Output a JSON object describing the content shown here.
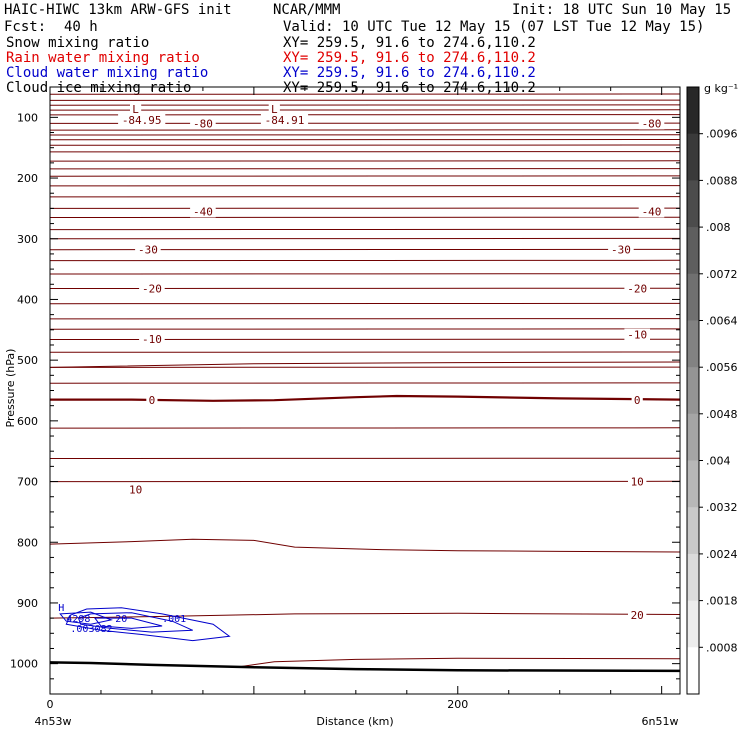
{
  "header": {
    "title_left": "HAIC-HIWC 13km ARW-GFS init",
    "title_mid": "NCAR/MMM",
    "init_time": "Init: 18 UTC Sun 10 May 15",
    "fcst_label": "Fcst:",
    "fcst_value": "40 h",
    "valid_time": "Valid: 10 UTC Tue 12 May 15 (07 LST Tue 12 May 15)"
  },
  "fields": [
    {
      "name": "Snow mixing ratio",
      "xy": "XY= 259.5, 91.6 to 274.6,110.2",
      "color": "#000000"
    },
    {
      "name": "Rain water mixing ratio",
      "xy": "XY= 259.5, 91.6 to 274.6,110.2",
      "color": "#e00000"
    },
    {
      "name": "Cloud water mixing ratio",
      "xy": "XY= 259.5, 91.6 to 274.6,110.2",
      "color": "#0000cc"
    },
    {
      "name": "Cloud ice mixing ratio",
      "xy": "XY= 259.5, 91.6 to 274.6,110.2",
      "color": "#000000"
    }
  ],
  "chart_data": {
    "type": "cross-section contour",
    "xlabel": "Distance (km)",
    "ylabel": "Pressure (hPa)",
    "x_ticks": [
      0,
      200
    ],
    "y_ticks": [
      100,
      200,
      300,
      400,
      500,
      600,
      700,
      800,
      900,
      1000
    ],
    "xlim": [
      0,
      309
    ],
    "ylim": [
      1050,
      50
    ],
    "left_location": "4n53w",
    "right_location": "6n51w",
    "colorbar": {
      "unit": "g kg⁻¹",
      "ticks": [
        ".0096",
        ".0088",
        ".008",
        ".0072",
        ".0064",
        ".0056",
        ".0048",
        ".004",
        ".0032",
        ".0024",
        ".0018",
        ".0008"
      ]
    },
    "temperature_contour_color": "#700000",
    "cloud_water_contour_color": "#0000cc",
    "temperature_labels": [
      {
        "text": "-84.95",
        "x": 45,
        "p": 104
      },
      {
        "text": "L",
        "x": 42,
        "p": 86
      },
      {
        "text": "-80",
        "x": 75,
        "p": 110
      },
      {
        "text": "-84.91",
        "x": 115,
        "p": 104
      },
      {
        "text": "L",
        "x": 110,
        "p": 86
      },
      {
        "text": "-80",
        "x": 295,
        "p": 110
      },
      {
        "text": "-40",
        "x": 75,
        "p": 255
      },
      {
        "text": "-40",
        "x": 295,
        "p": 255
      },
      {
        "text": "-30",
        "x": 48,
        "p": 318
      },
      {
        "text": "-30",
        "x": 280,
        "p": 318
      },
      {
        "text": "-20",
        "x": 50,
        "p": 382
      },
      {
        "text": "-20",
        "x": 288,
        "p": 382
      },
      {
        "text": "-10",
        "x": 50,
        "p": 465
      },
      {
        "text": "-10",
        "x": 288,
        "p": 458
      },
      {
        "text": "0",
        "x": 50,
        "p": 566
      },
      {
        "text": "0",
        "x": 288,
        "p": 566
      },
      {
        "text": "10",
        "x": 42,
        "p": 713
      },
      {
        "text": "10",
        "x": 288,
        "p": 700
      },
      {
        "text": "20",
        "x": 288,
        "p": 920
      }
    ],
    "cloud_labels": [
      {
        "text": "H",
        "x": 4,
        "p": 907
      },
      {
        "text": "4298",
        "x": 8,
        "p": 925
      },
      {
        "text": ".003082",
        "x": 10,
        "p": 941
      },
      {
        "text": "20",
        "x": 32,
        "p": 925
      },
      {
        "text": ".001",
        "x": 55,
        "p": 925
      }
    ]
  }
}
